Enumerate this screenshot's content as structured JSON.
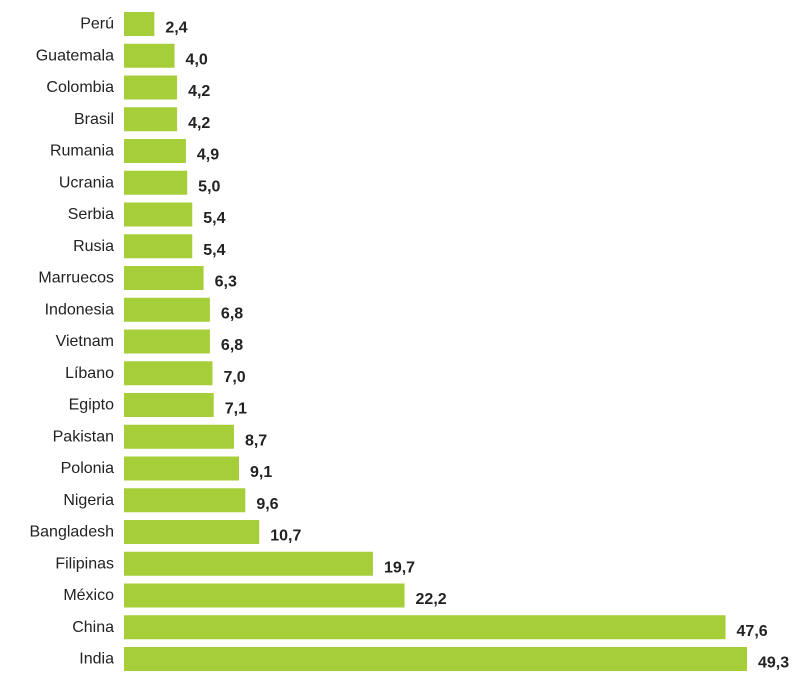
{
  "chart_data": {
    "type": "bar",
    "orientation": "horizontal",
    "title": "",
    "xlabel": "",
    "ylabel": "",
    "categories": [
      "Perú",
      "Guatemala",
      "Colombia",
      "Brasil",
      "Rumania",
      "Ucrania",
      "Serbia",
      "Rusia",
      "Marruecos",
      "Indonesia",
      "Vietnam",
      "Líbano",
      "Egipto",
      "Pakistan",
      "Polonia",
      "Nigeria",
      "Bangladesh",
      "Filipinas",
      "México",
      "China",
      "India"
    ],
    "values": [
      2.4,
      4.0,
      4.2,
      4.2,
      4.9,
      5.0,
      5.4,
      5.4,
      6.3,
      6.8,
      6.8,
      7.0,
      7.1,
      8.7,
      9.1,
      9.6,
      10.7,
      19.7,
      22.2,
      47.6,
      49.3
    ],
    "value_labels": [
      "2,4",
      "4,0",
      "4,2",
      "4,2",
      "4,9",
      "5,0",
      "5,4",
      "5,4",
      "6,3",
      "6,8",
      "6,8",
      "7,0",
      "7,1",
      "8,7",
      "9,1",
      "9,6",
      "10,7",
      "19,7",
      "22,2",
      "47,6",
      "49,3"
    ],
    "xlim": [
      0,
      49.3
    ],
    "grid": false,
    "legend": "none",
    "colors": {
      "bar": "#a6ce39",
      "text": "#222222"
    }
  }
}
